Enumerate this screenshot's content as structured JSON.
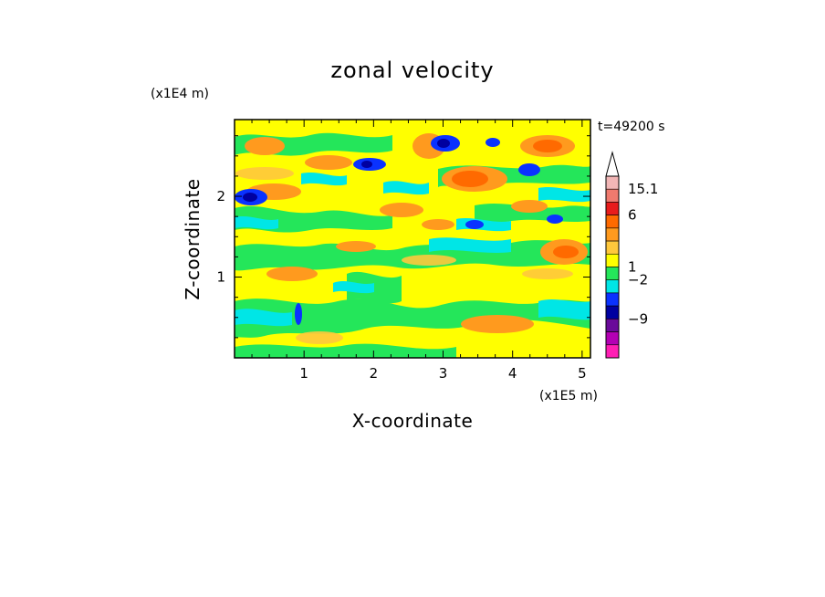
{
  "chart_data": {
    "type": "heatmap",
    "title": "zonal velocity",
    "xlabel": "X-coordinate",
    "ylabel": "Z-coordinate",
    "x_unit_label": "(x1E5 m)",
    "y_unit_label": "(x1E4 m)",
    "time_label": "t=49200 s",
    "xlim": [
      0,
      5.12
    ],
    "ylim": [
      0,
      2.95
    ],
    "xticks": [
      {
        "value": 1,
        "label": "1"
      },
      {
        "value": 2,
        "label": "2"
      },
      {
        "value": 3,
        "label": "3"
      },
      {
        "value": 4,
        "label": "4"
      },
      {
        "value": 5,
        "label": "5"
      }
    ],
    "yticks": [
      {
        "value": 1,
        "label": "1"
      },
      {
        "value": 2,
        "label": "2"
      }
    ],
    "colorbar": {
      "levels_top_to_bottom": [
        {
          "color": "#f2b6b6"
        },
        {
          "color": "#f07a6e"
        },
        {
          "color": "#e81c1c"
        },
        {
          "color": "#ff6a00"
        },
        {
          "color": "#ff9a1e"
        },
        {
          "color": "#ffc83c"
        },
        {
          "color": "#ffff00"
        },
        {
          "color": "#24e65a"
        },
        {
          "color": "#00e6e6"
        },
        {
          "color": "#0a32ff"
        },
        {
          "color": "#0000a0"
        },
        {
          "color": "#6a0a9a"
        },
        {
          "color": "#b400b4"
        },
        {
          "color": "#ff1eb4"
        }
      ],
      "labels": [
        {
          "text": "15.1",
          "at_boundary": 1
        },
        {
          "text": "6",
          "at_boundary": 3
        },
        {
          "text": "1",
          "at_boundary": 7
        },
        {
          "text": "−2",
          "at_boundary": 8
        },
        {
          "text": "−9",
          "at_boundary": 11
        }
      ],
      "extend_top": true
    },
    "field_bands": [
      {
        "z_range": [
          0.0,
          0.2
        ],
        "dominant": "yellow/orange/green"
      },
      {
        "z_range": [
          0.2,
          0.6
        ],
        "dominant": "green/cyan with yellow"
      },
      {
        "z_range": [
          0.6,
          1.2
        ],
        "dominant": "yellow/green/cyan"
      },
      {
        "z_range": [
          1.2,
          1.8
        ],
        "dominant": "yellow/orange/cyan"
      },
      {
        "z_range": [
          1.8,
          2.95
        ],
        "dominant": "orange/red/blue/green mixed"
      }
    ],
    "extremes": [
      {
        "x": 0.2,
        "z": 2.05,
        "category": "blue-min"
      },
      {
        "x": 3.0,
        "z": 2.65,
        "category": "blue-min"
      },
      {
        "x": 1.8,
        "z": 2.4,
        "category": "blue-min"
      },
      {
        "x": 4.2,
        "z": 2.35,
        "category": "blue-min"
      },
      {
        "x": 3.35,
        "z": 2.2,
        "category": "red-max"
      },
      {
        "x": 4.5,
        "z": 2.6,
        "category": "red-max"
      },
      {
        "x": 4.8,
        "z": 1.3,
        "category": "orange-max"
      }
    ]
  },
  "colors": {
    "c_cyan": "#00e6e6",
    "c_green": "#24e65a",
    "c_yellow": "#ffff00",
    "c_lorange": "#ffc83c",
    "c_orange": "#ff9a1e",
    "c_dorange": "#ff6a00",
    "c_red": "#e81c1c",
    "c_blue": "#0a32ff",
    "c_navy": "#0000a0"
  }
}
